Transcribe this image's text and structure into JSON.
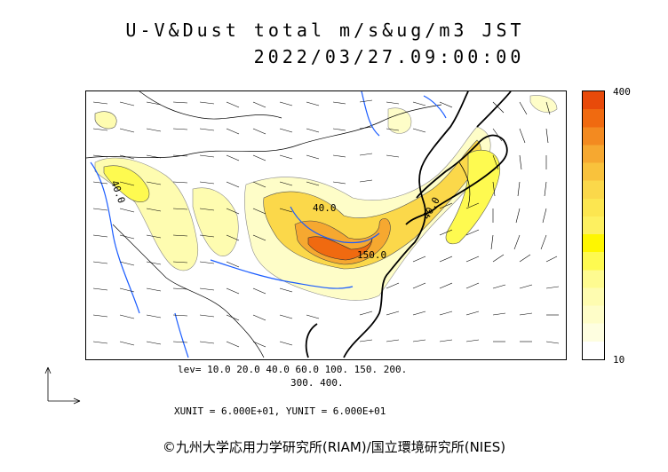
{
  "header": {
    "title_line1": "U-V&Dust total m/s&ug/m3 JST",
    "title_line2": "2022/03/27.09:00:00"
  },
  "colorbar": {
    "max_label": "400",
    "min_label": "10",
    "colors_top_to_bottom": [
      "#e84a0a",
      "#f06a10",
      "#f38a20",
      "#f6a830",
      "#f9c23c",
      "#fbd84a",
      "#fce650",
      "#fdf060",
      "#fef600",
      "#fefa50",
      "#fefb90",
      "#fefcb0",
      "#fefdc8",
      "#fefee0",
      "#ffffff"
    ]
  },
  "levels": {
    "line1": "lev= 10.0 20.0 40.0 60.0 100. 150. 200.",
    "line2": "300. 400."
  },
  "units": "XUNIT = 6.000E+01, YUNIT = 6.000E+01",
  "map_labels": {
    "contour_40_west": "40.0",
    "contour_40_center": "40.0",
    "contour_40_east": "40.0",
    "contour_150": "150.0"
  },
  "credit": "©九州大学応用力学研究所(RIAM)/国立環境研究所(NIES)"
}
